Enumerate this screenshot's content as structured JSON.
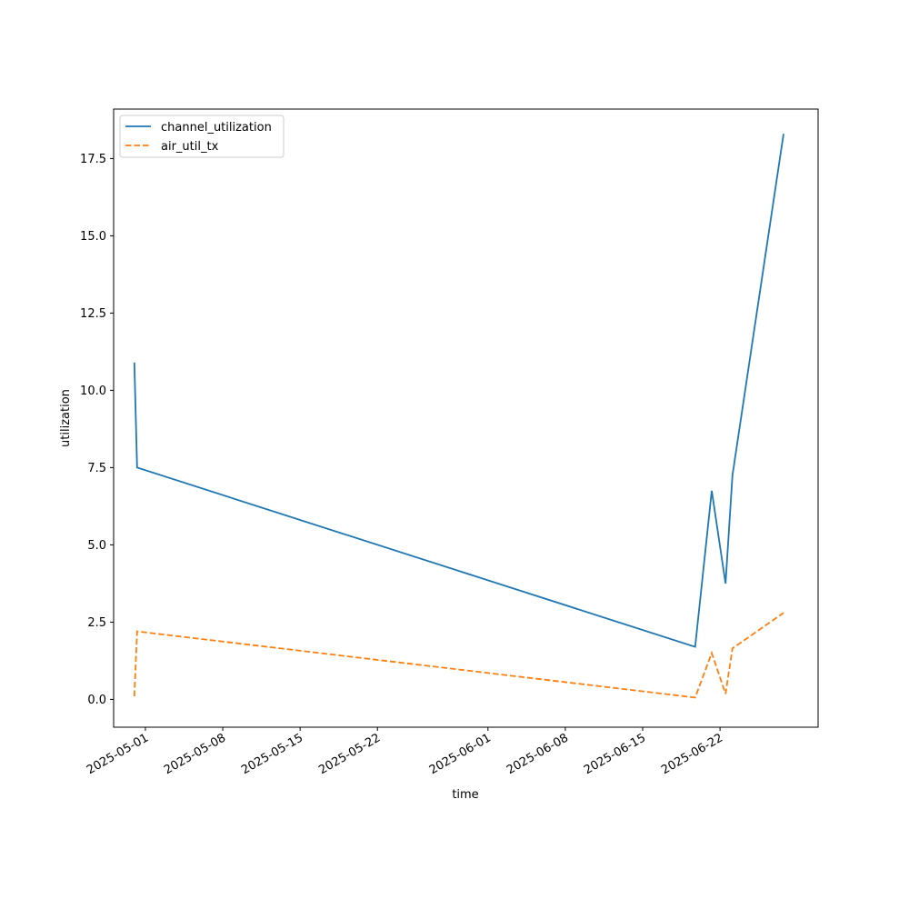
{
  "chart_data": {
    "type": "line",
    "title": "",
    "xlabel": "time",
    "ylabel": "utilization",
    "x_ticks": [
      "2025-05-01",
      "2025-05-08",
      "2025-05-15",
      "2025-05-22",
      "2025-06-01",
      "2025-06-08",
      "2025-06-15",
      "2025-06-22"
    ],
    "y_ticks": [
      "0.0",
      "2.5",
      "5.0",
      "7.5",
      "10.0",
      "12.5",
      "15.0",
      "17.5"
    ],
    "xlim": [
      "2025-04-28T03:00",
      "2025-06-30T21:00"
    ],
    "ylim": [
      -0.9,
      19.1
    ],
    "grid": false,
    "legend_position": "top-left",
    "series": [
      {
        "name": "channel_utilization",
        "color": "#1f77b4",
        "dash": "solid",
        "points": [
          {
            "x": "2025-04-30T00:00",
            "y": 10.9
          },
          {
            "x": "2025-04-30T06:00",
            "y": 7.5
          },
          {
            "x": "2025-06-19T18:00",
            "y": 1.7
          },
          {
            "x": "2025-06-21T06:00",
            "y": 6.75
          },
          {
            "x": "2025-06-22T12:00",
            "y": 3.75
          },
          {
            "x": "2025-06-23T03:00",
            "y": 7.25
          },
          {
            "x": "2025-06-27T18:00",
            "y": 18.3
          }
        ]
      },
      {
        "name": "air_util_tx",
        "color": "#ff7f0e",
        "dash": "dashed",
        "points": [
          {
            "x": "2025-04-30T00:00",
            "y": 0.1
          },
          {
            "x": "2025-04-30T06:00",
            "y": 2.2
          },
          {
            "x": "2025-06-19T18:00",
            "y": 0.06
          },
          {
            "x": "2025-06-21T06:00",
            "y": 1.5
          },
          {
            "x": "2025-06-22T12:00",
            "y": 0.18
          },
          {
            "x": "2025-06-23T03:00",
            "y": 1.65
          },
          {
            "x": "2025-06-27T18:00",
            "y": 2.8
          }
        ]
      }
    ]
  }
}
